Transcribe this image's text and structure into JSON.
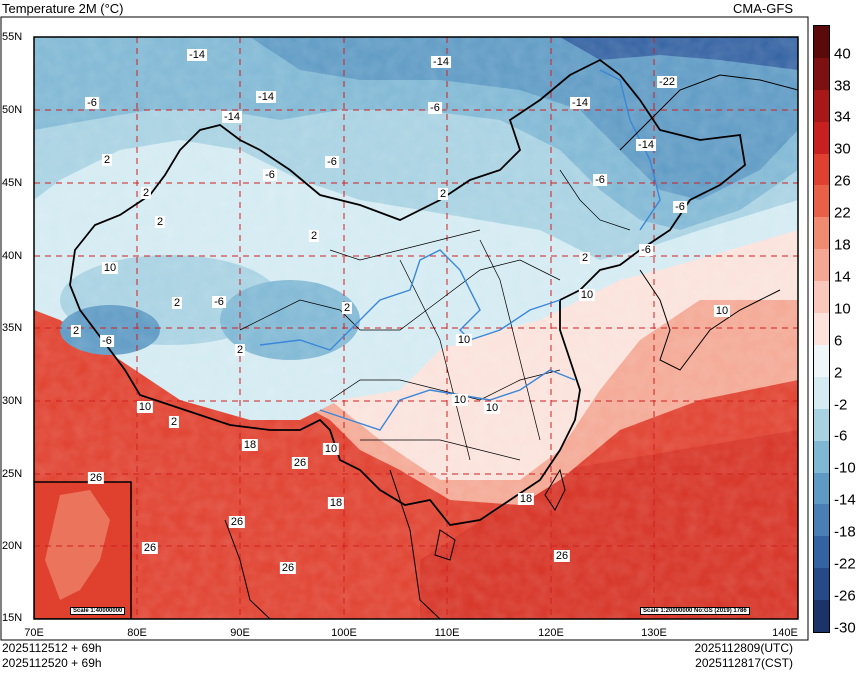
{
  "title": "Temperature  2M (°C)",
  "model": "CMA-GFS",
  "lat_labels": [
    "55N",
    "50N",
    "45N",
    "40N",
    "35N",
    "30N",
    "25N",
    "20N",
    "15N"
  ],
  "lon_labels": [
    "70E",
    "80E",
    "90E",
    "100E",
    "110E",
    "120E",
    "130E",
    "140E"
  ],
  "footer": {
    "left_line1": "2025112512 + 69h",
    "left_line2": "2025112520 + 69h",
    "right_line1": "2025112809(UTC)",
    "right_line2": "2025112817(CST)"
  },
  "inset_scale": "Scale 1:40000000",
  "map_scale": "Scale 1:20000000 No:GS (2019) 1786",
  "colorbar": {
    "labels": [
      "40",
      "38",
      "34",
      "30",
      "26",
      "22",
      "18",
      "14",
      "10",
      "6",
      "2",
      "-2",
      "-6",
      "-10",
      "-14",
      "-18",
      "-22",
      "-26",
      "-30"
    ],
    "colors": [
      "#5a0a0a",
      "#7d1010",
      "#a81818",
      "#c82020",
      "#e04030",
      "#e86048",
      "#f08a70",
      "#f4a894",
      "#f8c8bc",
      "#fbe2dc",
      "#eef6fa",
      "#d4ebf2",
      "#a8d2e2",
      "#80b8d4",
      "#5e9ac4",
      "#4a7eb4",
      "#3462a2",
      "#264a88",
      "#1a3468"
    ]
  },
  "contour_labels": [
    {
      "text": "-14"
    },
    {
      "text": "-14"
    },
    {
      "text": "-22"
    },
    {
      "text": "-6"
    },
    {
      "text": "-14"
    },
    {
      "text": "-14"
    },
    {
      "text": "-6"
    },
    {
      "text": "-14"
    },
    {
      "text": "-14"
    },
    {
      "text": "2"
    },
    {
      "text": "-6"
    },
    {
      "text": "-6"
    },
    {
      "text": "-6"
    },
    {
      "text": "2"
    },
    {
      "text": "2"
    },
    {
      "text": "2"
    },
    {
      "text": "2"
    },
    {
      "text": "-6"
    },
    {
      "text": "10"
    },
    {
      "text": "2"
    },
    {
      "text": "-6"
    },
    {
      "text": "2"
    },
    {
      "text": "10"
    },
    {
      "text": "2"
    },
    {
      "text": "-6"
    },
    {
      "text": "2"
    },
    {
      "text": "-6"
    },
    {
      "text": "10"
    },
    {
      "text": "10"
    },
    {
      "text": "10"
    },
    {
      "text": "10"
    },
    {
      "text": "2"
    },
    {
      "text": "18"
    },
    {
      "text": "10"
    },
    {
      "text": "26"
    },
    {
      "text": "18"
    },
    {
      "text": "26"
    },
    {
      "text": "26"
    },
    {
      "text": "26"
    },
    {
      "text": "26"
    },
    {
      "text": "18"
    },
    {
      "text": "26"
    },
    {
      "text": "2"
    },
    {
      "text": "10"
    }
  ]
}
